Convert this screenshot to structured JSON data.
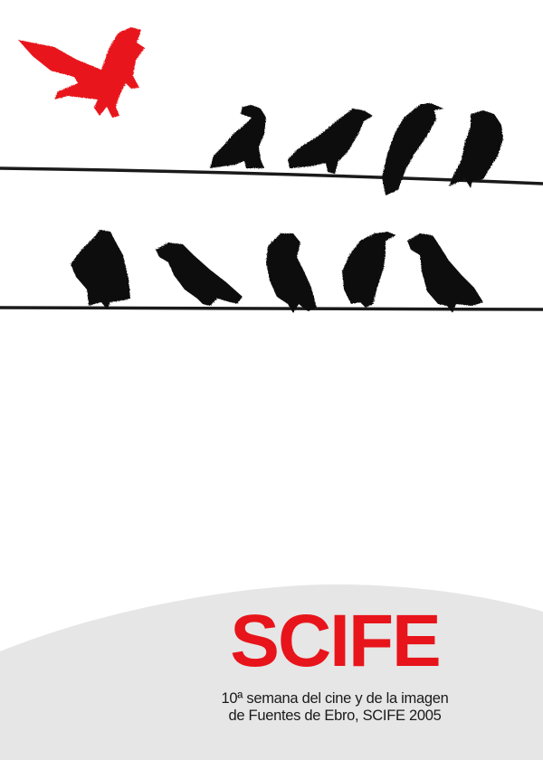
{
  "poster": {
    "title": "SCIFE",
    "subtitle_line1": "10ª semana del cine y de la imagen",
    "subtitle_line2": "de Fuentes de Ebro, SCIFE 2005"
  },
  "colors": {
    "accent_red": "#e8141b",
    "bird_black": "#111111",
    "wire": "#1a1a1a",
    "footer_grey": "#e6e6e6",
    "background": "#ffffff"
  },
  "illustration": {
    "flying_bird": "red-crow-icon",
    "perched_bird": "black-crow-icon",
    "wire": "power-line",
    "top_wire_bird_count": 4,
    "bottom_wire_bird_count": 5
  }
}
